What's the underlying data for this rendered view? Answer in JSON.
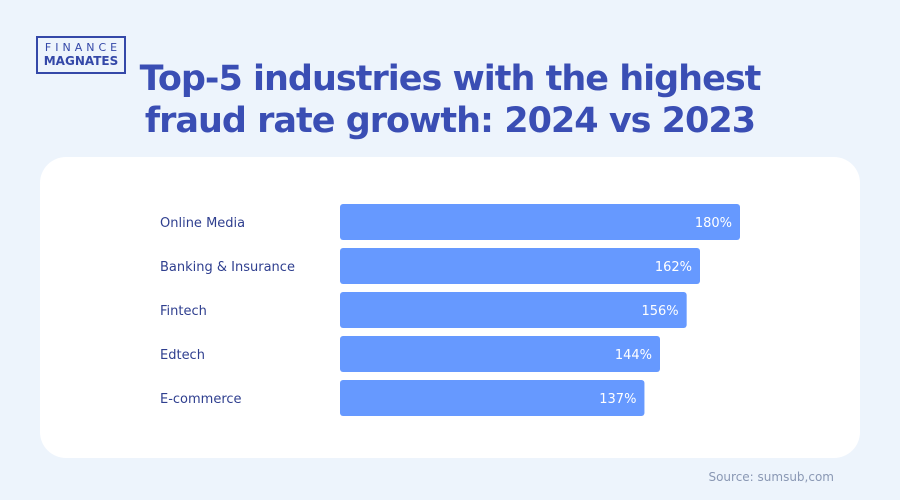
{
  "logo": {
    "line1": "FINANCE",
    "line2": "MAGNATES"
  },
  "title_line1": "Top-5 industries with the highest",
  "title_line2": "fraud rate growth: 2024 vs 2023",
  "source": "Source: sumsub,com",
  "colors": {
    "bar": "#6699ff",
    "title": "#3a4eb4",
    "background": "#edf4fc"
  },
  "chart_data": {
    "type": "bar",
    "orientation": "horizontal",
    "categories": [
      "Online Media",
      "Banking & Insurance",
      "Fintech",
      "Edtech",
      "E-commerce"
    ],
    "values": [
      180,
      162,
      156,
      144,
      137
    ],
    "value_labels": [
      "180%",
      "162%",
      "156%",
      "144%",
      "137%"
    ],
    "unit": "%",
    "xlim": [
      0,
      180
    ],
    "grid": false,
    "legend": "none"
  }
}
